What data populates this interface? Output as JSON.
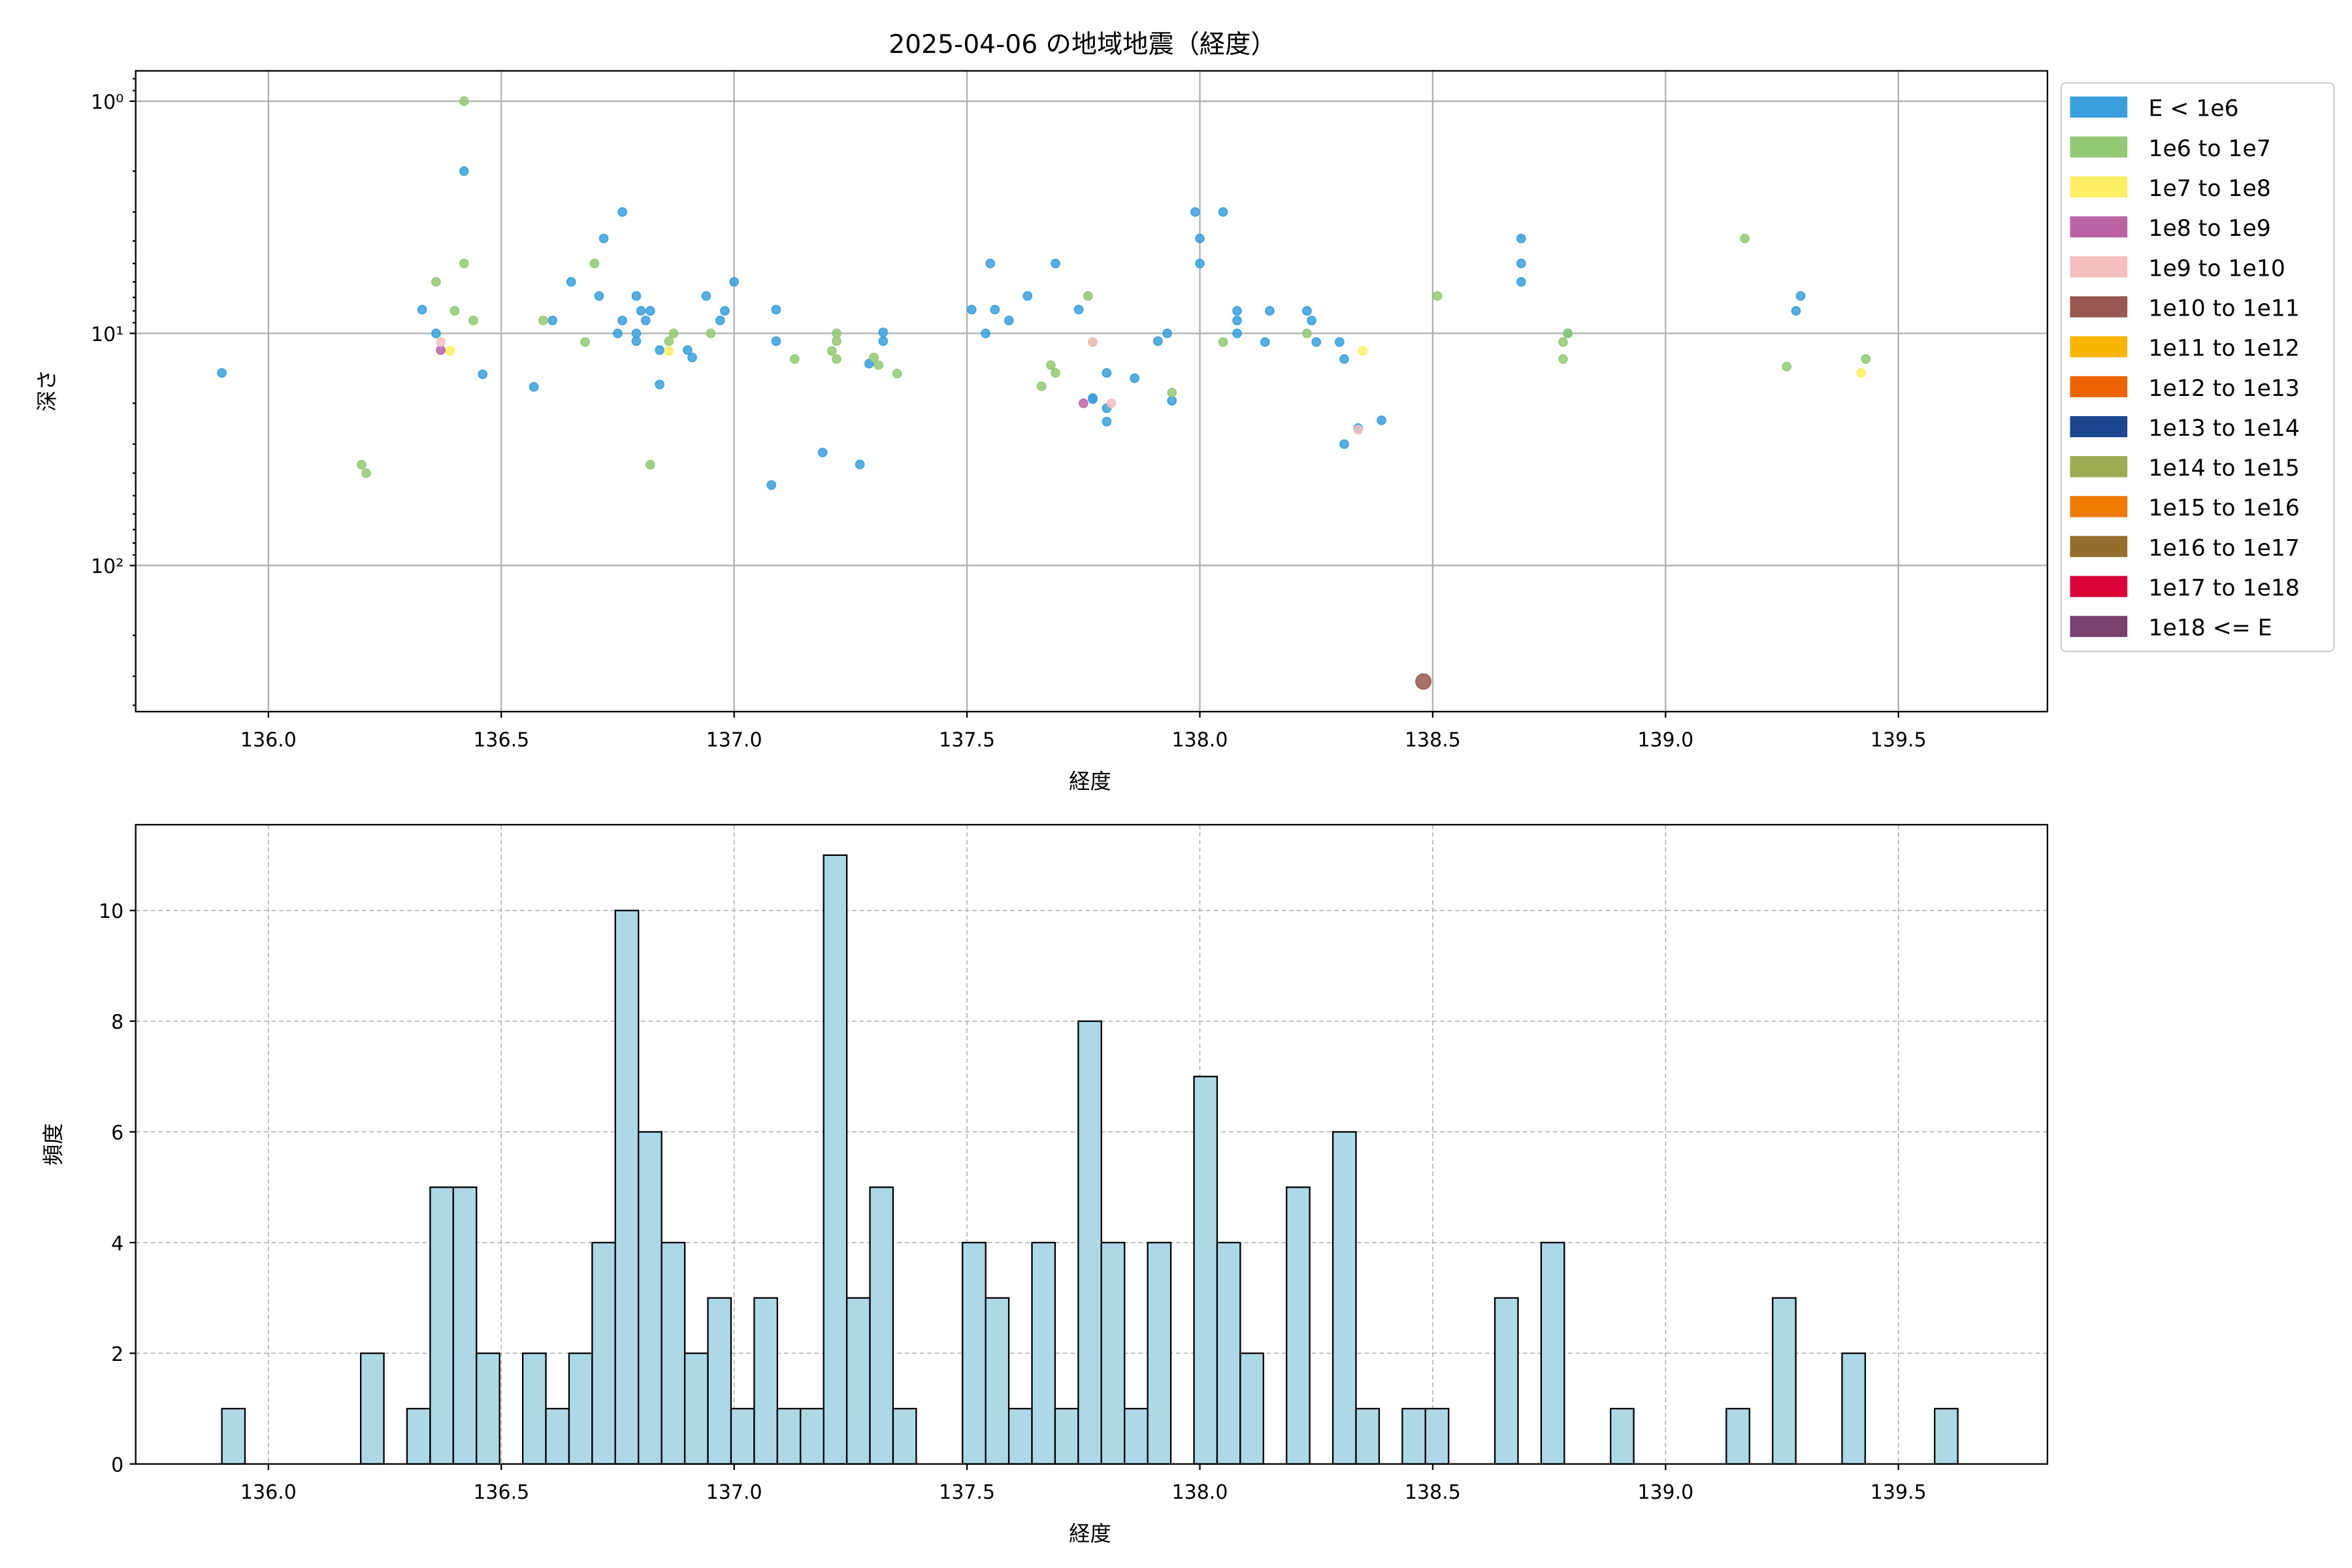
{
  "chart_data": [
    {
      "type": "scatter",
      "title": "2025-04-06 の地域地震（経度）",
      "xlabel": "経度",
      "ylabel": "深さ",
      "xlim": [
        135.715,
        139.82
      ],
      "ylim": [
        0.74,
        426
      ],
      "yscale": "log",
      "yaxis_inverted": true,
      "grid": true,
      "xticks": [
        136.0,
        136.5,
        137.0,
        137.5,
        138.0,
        138.5,
        139.0,
        139.5
      ],
      "xtick_labels": [
        "136.0",
        "136.5",
        "137.0",
        "137.5",
        "138.0",
        "138.5",
        "139.0",
        "139.5"
      ],
      "yticks": [
        1,
        10,
        100
      ],
      "ytick_labels": [
        "10⁰",
        "10¹",
        "10²"
      ],
      "legend_position": "outside-right-top",
      "legend": [
        {
          "label": "E < 1e6",
          "color": "#3aa0dc"
        },
        {
          "label": "1e6 to 1e7",
          "color": "#93c974"
        },
        {
          "label": "1e7 to 1e8",
          "color": "#fdee65"
        },
        {
          "label": "1e8 to 1e9",
          "color": "#bb64a4"
        },
        {
          "label": "1e9 to 1e10",
          "color": "#f5bfbf"
        },
        {
          "label": "1e10 to 1e11",
          "color": "#985750"
        },
        {
          "label": "1e11 to 1e12",
          "color": "#f7b500"
        },
        {
          "label": "1e12 to 1e13",
          "color": "#ec6502"
        },
        {
          "label": "1e13 to 1e14",
          "color": "#1b4690"
        },
        {
          "label": "1e14 to 1e15",
          "color": "#9dab52"
        },
        {
          "label": "1e15 to 1e16",
          "color": "#ef7a00"
        },
        {
          "label": "1e16 to 1e17",
          "color": "#956d2e"
        },
        {
          "label": "1e17 to 1e18",
          "color": "#da0038"
        },
        {
          "label": "1e18 <= E",
          "color": "#7a4070"
        }
      ],
      "series": [
        {
          "name": "E < 1e6",
          "points": [
            [
              135.9,
              14.8
            ],
            [
              136.42,
              2
            ],
            [
              136.33,
              7.9
            ],
            [
              136.36,
              10
            ],
            [
              136.46,
              15
            ],
            [
              136.57,
              17
            ],
            [
              136.61,
              8.8
            ],
            [
              136.65,
              6
            ],
            [
              136.72,
              3.9
            ],
            [
              136.71,
              6.9
            ],
            [
              136.76,
              3
            ],
            [
              136.76,
              8.8
            ],
            [
              136.75,
              10
            ],
            [
              136.79,
              6.9
            ],
            [
              136.8,
              8
            ],
            [
              136.79,
              10
            ],
            [
              136.81,
              8.8
            ],
            [
              136.82,
              8
            ],
            [
              136.79,
              10.8
            ],
            [
              136.84,
              16.6
            ],
            [
              136.84,
              11.8
            ],
            [
              136.9,
              11.8
            ],
            [
              136.91,
              12.7
            ],
            [
              136.94,
              6.9
            ],
            [
              136.97,
              8.8
            ],
            [
              136.98,
              8
            ],
            [
              137.0,
              6
            ],
            [
              137.09,
              7.9
            ],
            [
              137.09,
              10.8
            ],
            [
              137.08,
              45
            ],
            [
              137.19,
              32.6
            ],
            [
              137.27,
              36.7
            ],
            [
              137.29,
              13.5
            ],
            [
              137.32,
              10.8
            ],
            [
              137.32,
              9.9
            ],
            [
              137.51,
              7.9
            ],
            [
              137.54,
              10
            ],
            [
              137.55,
              5
            ],
            [
              137.56,
              7.9
            ],
            [
              137.59,
              8.8
            ],
            [
              137.63,
              6.9
            ],
            [
              137.69,
              5
            ],
            [
              137.74,
              7.9
            ],
            [
              137.77,
              19
            ],
            [
              137.77,
              19.2
            ],
            [
              137.8,
              21
            ],
            [
              137.8,
              24
            ],
            [
              137.8,
              14.8
            ],
            [
              137.86,
              15.6
            ],
            [
              137.91,
              10.8
            ],
            [
              137.93,
              10
            ],
            [
              137.94,
              19.5
            ],
            [
              137.99,
              3
            ],
            [
              138.0,
              3.9
            ],
            [
              138.0,
              5
            ],
            [
              138.05,
              3
            ],
            [
              138.08,
              8.8
            ],
            [
              138.08,
              8
            ],
            [
              138.08,
              10
            ],
            [
              138.14,
              10.9
            ],
            [
              138.15,
              8
            ],
            [
              138.23,
              8
            ],
            [
              138.24,
              8.8
            ],
            [
              138.25,
              10.9
            ],
            [
              138.3,
              10.9
            ],
            [
              138.31,
              12.9
            ],
            [
              138.31,
              30
            ],
            [
              138.34,
              25.6
            ],
            [
              138.39,
              23.7
            ],
            [
              138.69,
              3.9
            ],
            [
              138.69,
              5
            ],
            [
              138.69,
              6
            ],
            [
              138.79,
              10
            ],
            [
              139.29,
              6.9
            ],
            [
              139.28,
              8
            ]
          ]
        },
        {
          "name": "1e6 to 1e7",
          "points": [
            [
              136.42,
              1
            ],
            [
              136.42,
              5
            ],
            [
              136.36,
              6
            ],
            [
              136.4,
              8
            ],
            [
              136.44,
              8.8
            ],
            [
              136.2,
              36.8
            ],
            [
              136.21,
              40
            ],
            [
              136.59,
              8.8
            ],
            [
              136.7,
              5
            ],
            [
              136.68,
              10.9
            ],
            [
              136.86,
              10.8
            ],
            [
              136.87,
              10
            ],
            [
              136.95,
              10
            ],
            [
              136.82,
              36.8
            ],
            [
              137.13,
              12.9
            ],
            [
              137.22,
              10
            ],
            [
              137.22,
              10.8
            ],
            [
              137.21,
              11.9
            ],
            [
              137.22,
              12.9
            ],
            [
              137.3,
              12.7
            ],
            [
              137.31,
              13.7
            ],
            [
              137.35,
              14.9
            ],
            [
              137.66,
              16.9
            ],
            [
              137.68,
              13.7
            ],
            [
              137.69,
              14.8
            ],
            [
              137.76,
              6.9
            ],
            [
              137.77,
              10.9
            ],
            [
              137.94,
              18
            ],
            [
              138.05,
              10.9
            ],
            [
              138.23,
              10
            ],
            [
              138.51,
              6.9
            ],
            [
              138.78,
              10.9
            ],
            [
              138.78,
              12.9
            ],
            [
              138.79,
              10
            ],
            [
              139.17,
              3.9
            ],
            [
              139.26,
              13.9
            ],
            [
              139.43,
              12.9
            ]
          ]
        },
        {
          "name": "1e7 to 1e8",
          "points": [
            [
              136.39,
              11.9
            ],
            [
              136.86,
              11.9
            ],
            [
              138.35,
              11.9
            ],
            [
              139.42,
              14.8
            ]
          ]
        },
        {
          "name": "1e8 to 1e9",
          "points": [
            [
              136.37,
              11.8
            ],
            [
              137.75,
              20
            ]
          ]
        },
        {
          "name": "1e9 to 1e10",
          "points": [
            [
              136.37,
              10.9
            ],
            [
              137.81,
              20
            ],
            [
              137.77,
              10.9
            ],
            [
              138.34,
              26
            ]
          ]
        },
        {
          "name": "1e10 to 1e11",
          "points": [
            [
              138.48,
              316
            ]
          ]
        }
      ]
    },
    {
      "type": "bar",
      "subtype": "histogram",
      "xlabel": "経度",
      "ylabel": "頻度",
      "xlim": [
        135.715,
        139.82
      ],
      "ylim": [
        0,
        11.55
      ],
      "grid": true,
      "grid_style": "dashed",
      "bar_color": "#add8e6",
      "edge_color": "#000000",
      "bin_start": 135.9,
      "bin_width": 0.0497,
      "counts": [
        1,
        0,
        0,
        0,
        0,
        0,
        2,
        0,
        1,
        5,
        5,
        2,
        0,
        2,
        1,
        2,
        4,
        10,
        6,
        4,
        2,
        3,
        1,
        3,
        1,
        1,
        11,
        3,
        5,
        1,
        0,
        0,
        4,
        3,
        1,
        4,
        1,
        8,
        4,
        1,
        4,
        0,
        7,
        4,
        2,
        0,
        5,
        0,
        6,
        1,
        0,
        1,
        1,
        0,
        0,
        3,
        0,
        4,
        0,
        0,
        1,
        0,
        0,
        0,
        0,
        1,
        0,
        3,
        0,
        0,
        2,
        0,
        0,
        0,
        1
      ],
      "xticks": [
        136.0,
        136.5,
        137.0,
        137.5,
        138.0,
        138.5,
        139.0,
        139.5
      ],
      "xtick_labels": [
        "136.0",
        "136.5",
        "137.0",
        "137.5",
        "138.0",
        "138.5",
        "139.0",
        "139.5"
      ],
      "yticks": [
        0,
        2,
        4,
        6,
        8,
        10
      ],
      "ytick_labels": [
        "0",
        "2",
        "4",
        "6",
        "8",
        "10"
      ]
    }
  ]
}
